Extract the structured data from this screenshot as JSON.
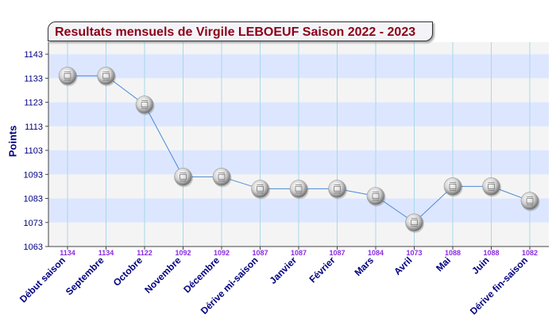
{
  "chart_data": {
    "type": "line",
    "title": "Resultats mensuels de Virgile LEBOEUF Saison 2022 - 2023",
    "ylabel": "Points",
    "xlabel": "",
    "ylim": [
      1063,
      1148
    ],
    "yticks": [
      1063,
      1073,
      1083,
      1093,
      1103,
      1113,
      1123,
      1133,
      1143
    ],
    "categories": [
      "Début saison",
      "Septembre",
      "Octobre",
      "Novembre",
      "Décembre",
      "Dérive mi-saison",
      "Janvier",
      "Février",
      "Mars",
      "Avril",
      "Mai",
      "Juin",
      "Dérive fin-saison"
    ],
    "values": [
      1134,
      1134,
      1122,
      1092,
      1092,
      1087,
      1087,
      1087,
      1084,
      1073,
      1088,
      1088,
      1082
    ],
    "grid": true,
    "legend": "none",
    "colors": {
      "title": "#8b0018",
      "axis_text": "#000080",
      "value_labels": "#8a2be2",
      "line": "#4a8ad6",
      "band_blue": "#dde6ff",
      "band_grey": "#f4f4f4",
      "vgrid": "#a8d8e8"
    }
  }
}
